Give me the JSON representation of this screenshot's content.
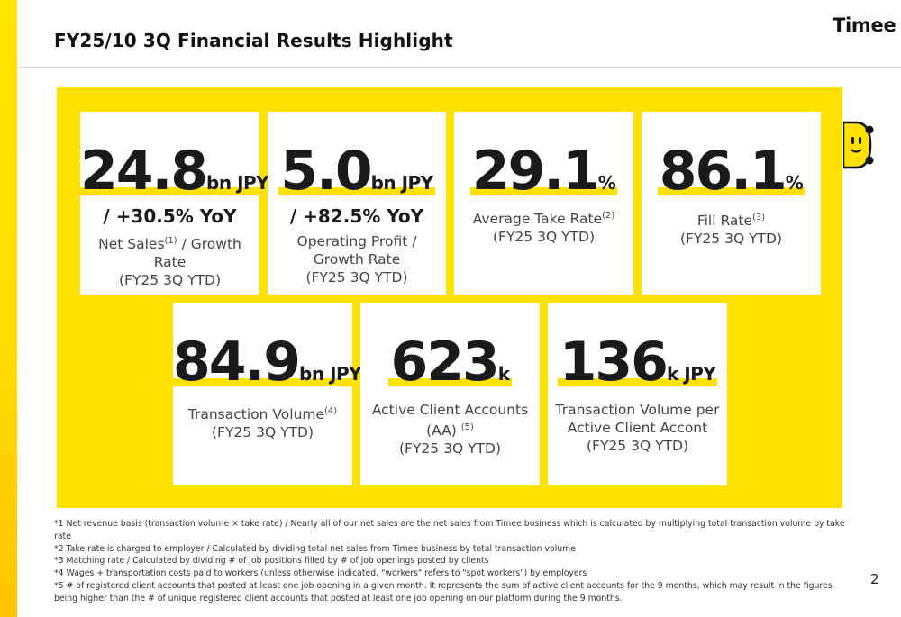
{
  "header": {
    "title": "FY25/10 3Q Financial Results Highlight",
    "logo": "Timee"
  },
  "colors": {
    "brand_yellow": "#ffe100",
    "text": "#1a1a1a"
  },
  "metrics": [
    {
      "value": "24.8",
      "unit": "bn JPY",
      "yoy": "/ +30.5% YoY",
      "label_pre": "Net Sales",
      "note": "(1)",
      "label_post": " / Growth Rate",
      "period": "(FY25 3Q YTD)"
    },
    {
      "value": "5.0",
      "unit": "bn JPY",
      "yoy": "/ +82.5% YoY",
      "label_line1": "Operating Profit /",
      "label_line2": "Growth Rate",
      "period": "(FY25 3Q YTD)"
    },
    {
      "value": "29.1",
      "unit": "%",
      "label_pre": "Average Take Rate",
      "note": "(2)",
      "period": "(FY25 3Q YTD)"
    },
    {
      "value": "86.1",
      "unit": "%",
      "label_pre": "Fill Rate",
      "note": "(3)",
      "period": "(FY25 3Q YTD)"
    },
    {
      "value": "84.9",
      "unit": "bn JPY",
      "label_pre": "Transaction Volume",
      "note": "(4)",
      "period": "(FY25 3Q YTD)"
    },
    {
      "value": "623",
      "unit": "k",
      "label_line1": "Active Client Accounts",
      "label_pre": "(AA)",
      "note": "(5)",
      "period": "(FY25 3Q YTD)"
    },
    {
      "value": "136",
      "unit": "k JPY",
      "label_line1": "Transaction Volume per",
      "label_line2": "Active Client Accont",
      "period": "(FY25 3Q YTD)"
    }
  ],
  "footnotes": [
    "*1 Net revenue basis (transaction volume × take rate) / Nearly all of our net sales are the net sales from Timee business which is calculated by multiplying total transaction volume by take rate",
    "*2 Take rate is charged to employer /  Calculated by dividing total net sales from Timee business by total transaction volume",
    "*3 Matching rate / Calculated by dividing # of job positions filled by # of job openings posted by clients",
    "*4 Wages + transportation costs paid to workers (unless otherwise indicated, \"workers\" refers to \"spot workers\") by employers",
    "*5 # of registered client accounts that posted at least one job opening in a given month. It represents the sum of active client accounts for the 9 months, which may result in the figures being higher than the # of unique registered client accounts that posted at least one job opening on our platform during the 9 months."
  ],
  "page_number": "2"
}
